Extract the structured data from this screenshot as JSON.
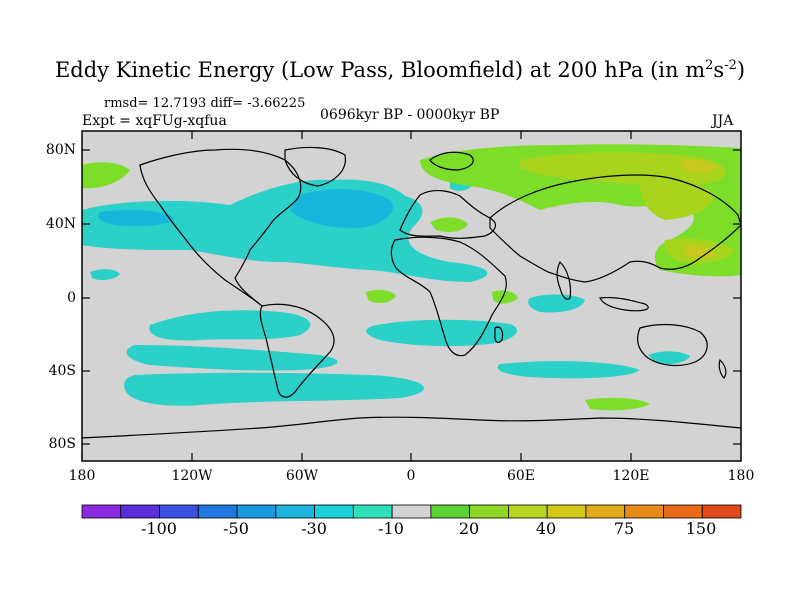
{
  "title": {
    "main": "Eddy Kinetic Energy (Low Pass, Bloomfield) at 200 hPa (in m",
    "sup1": "2",
    "mid": "s",
    "sup2": "-2",
    "close": ")"
  },
  "stats": "rmsd= 12.7193  diff= -3.66225",
  "expt": "Expt = xqFUg-xqfua",
  "period": "0696kyr BP - 0000kyr BP",
  "season": "JJA",
  "colors": {
    "land_background": "#d3d3d3",
    "coastline": "#000000",
    "blue_light": "#2bd0c8",
    "blue_mid": "#19b6dc",
    "green_light": "#7dde2a",
    "green_mid": "#a8d41e",
    "yellow": "#c8c81e"
  },
  "axes": {
    "lat_labels": [
      "80N",
      "40N",
      "0",
      "40S",
      "80S"
    ],
    "lon_labels": [
      "180",
      "120W",
      "60W",
      "0",
      "60E",
      "120E",
      "180"
    ]
  },
  "colorbar": {
    "colors": [
      "#8a2be2",
      "#5a2ed8",
      "#3a50de",
      "#2277e0",
      "#1a98e0",
      "#1ab4dc",
      "#1ccfd8",
      "#2ee0b8",
      "#d3d3d3",
      "#5cd232",
      "#90d828",
      "#b8d420",
      "#d2c81a",
      "#e0aa18",
      "#e68a18",
      "#e66a18",
      "#e04a18"
    ],
    "labels": [
      "-100",
      "-50",
      "-30",
      "-10",
      "20",
      "40",
      "75",
      "150"
    ]
  }
}
